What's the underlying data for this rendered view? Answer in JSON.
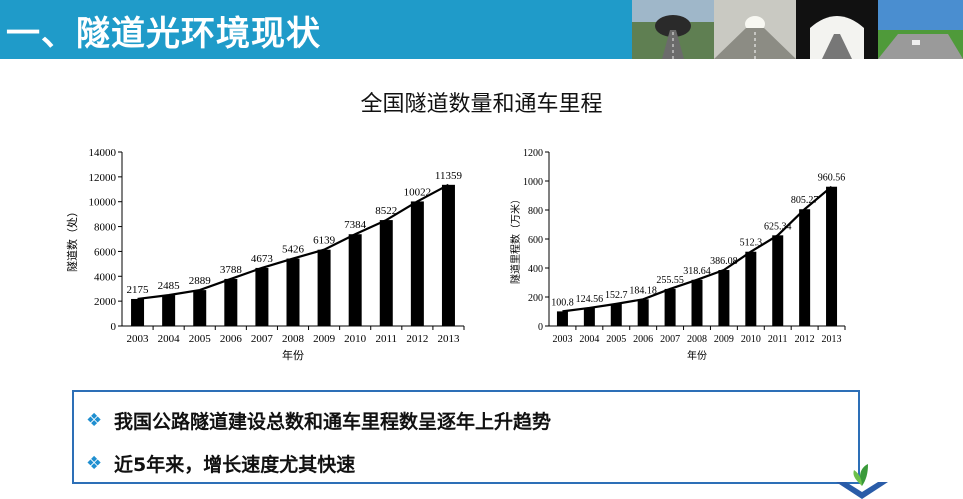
{
  "header": {
    "title": "一、隧道光环境现状",
    "color": "#1f9bc9",
    "photos": [
      "tunnel-entrance-photo",
      "tunnel-interior-photo",
      "tunnel-exit-photo",
      "highway-photo"
    ]
  },
  "slide_title": "全国隧道数量和通车里程",
  "chart_data": [
    {
      "type": "bar",
      "categories": [
        "2003",
        "2004",
        "2005",
        "2006",
        "2007",
        "2008",
        "2009",
        "2010",
        "2011",
        "2012",
        "2013"
      ],
      "values": [
        2175,
        2485,
        2889,
        3788,
        4673,
        5426,
        6139,
        7384,
        8522,
        10022,
        11359
      ],
      "value_labels": [
        "2175",
        "2485",
        "2889",
        "3788",
        "4673",
        "5426",
        "6139",
        "7384",
        "8522",
        "10022",
        "11359"
      ],
      "ylim": [
        0,
        14000
      ],
      "yticks": [
        "0",
        "2000",
        "4000",
        "6000",
        "8000",
        "10000",
        "12000",
        "14000"
      ],
      "ylabel": "隧道数（处）",
      "xlabel": "年份",
      "trendline": true,
      "bar_color": "#000000"
    },
    {
      "type": "bar",
      "categories": [
        "2003",
        "2004",
        "2005",
        "2006",
        "2007",
        "2008",
        "2009",
        "2010",
        "2011",
        "2012",
        "2013"
      ],
      "values": [
        100.8,
        124.56,
        152.7,
        184.18,
        255.55,
        318.64,
        386.08,
        512.3,
        625.34,
        805.27,
        960.56
      ],
      "value_labels": [
        "100.8",
        "124.56",
        "152.7",
        "184.18",
        "255.55",
        "318.64",
        "386.08",
        "512.3",
        "625.34",
        "805.27",
        "960.56"
      ],
      "ylim": [
        0,
        1200
      ],
      "yticks": [
        "0",
        "200",
        "400",
        "600",
        "800",
        "1000",
        "1200"
      ],
      "ylabel": "隧道里程数（万米）",
      "xlabel": "年份",
      "trendline": true,
      "bar_color": "#000000"
    }
  ],
  "callout": {
    "border_color": "#2d6fb7",
    "bullet_color": "#1f8fd0",
    "bullets": [
      {
        "mark": "❖",
        "text": "我国公路隧道建设总数和通车里程数呈逐年上升趋势"
      },
      {
        "mark": "❖",
        "text": "近5年来，增长速度尤其快速"
      }
    ]
  }
}
